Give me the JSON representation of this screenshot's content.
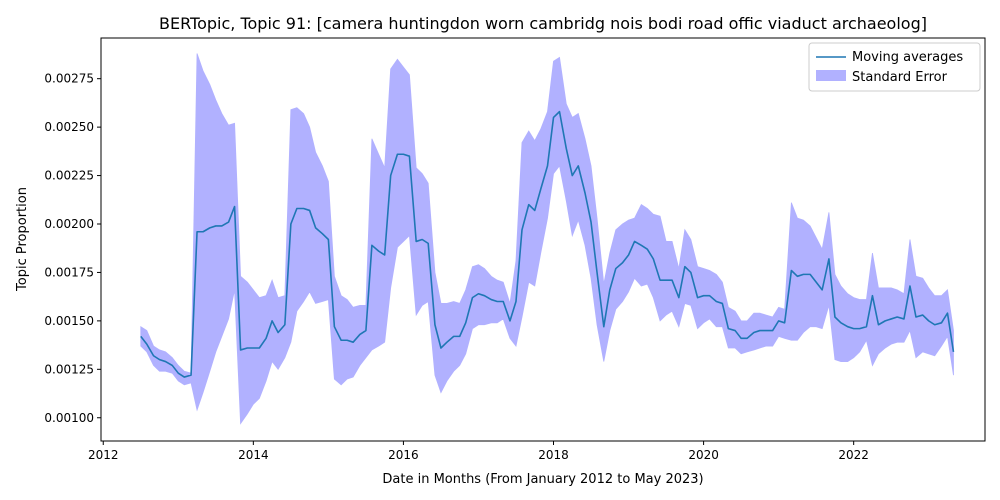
{
  "chart_data": {
    "type": "line",
    "title": "BERTopic, Topic 91: [camera huntingdon worn cambridg nois bodi road offic viaduct archaeolog]",
    "xlabel": "Date in Months (From January 2012 to May 2023)",
    "ylabel": "Topic Proportion",
    "xlim": [
      2011.97,
      2023.75
    ],
    "ylim": [
      0.00088,
      0.00296
    ],
    "xticks": [
      2012,
      2014,
      2016,
      2018,
      2020,
      2022
    ],
    "yticks": [
      0.001,
      0.00125,
      0.0015,
      0.00175,
      0.002,
      0.00225,
      0.0025,
      0.00275
    ],
    "ytick_labels": [
      "0.00100",
      "0.00125",
      "0.00150",
      "0.00175",
      "0.00200",
      "0.00225",
      "0.00250",
      "0.00275"
    ],
    "grid": false,
    "legend_position": "top-right",
    "series": [
      {
        "name": "Moving averages",
        "color": "#1f77b4",
        "x": [
          2012.5,
          2012.58,
          2012.67,
          2012.75,
          2012.83,
          2012.92,
          2013.0,
          2013.08,
          2013.17,
          2013.25,
          2013.33,
          2013.42,
          2013.5,
          2013.58,
          2013.67,
          2013.75,
          2013.83,
          2013.92,
          2014.0,
          2014.08,
          2014.17,
          2014.25,
          2014.33,
          2014.42,
          2014.5,
          2014.58,
          2014.67,
          2014.75,
          2014.83,
          2014.92,
          2015.0,
          2015.08,
          2015.17,
          2015.25,
          2015.33,
          2015.42,
          2015.5,
          2015.58,
          2015.67,
          2015.75,
          2015.83,
          2015.92,
          2016.0,
          2016.08,
          2016.17,
          2016.25,
          2016.33,
          2016.42,
          2016.5,
          2016.58,
          2016.67,
          2016.75,
          2016.83,
          2016.92,
          2017.0,
          2017.08,
          2017.17,
          2017.25,
          2017.33,
          2017.42,
          2017.5,
          2017.58,
          2017.67,
          2017.75,
          2017.83,
          2017.92,
          2018.0,
          2018.08,
          2018.17,
          2018.25,
          2018.33,
          2018.42,
          2018.5,
          2018.58,
          2018.67,
          2018.75,
          2018.83,
          2018.92,
          2019.0,
          2019.08,
          2019.17,
          2019.25,
          2019.33,
          2019.42,
          2019.5,
          2019.58,
          2019.67,
          2019.75,
          2019.83,
          2019.92,
          2020.0,
          2020.08,
          2020.17,
          2020.25,
          2020.33,
          2020.42,
          2020.5,
          2020.58,
          2020.67,
          2020.75,
          2020.83,
          2020.92,
          2021.0,
          2021.08,
          2021.17,
          2021.25,
          2021.33,
          2021.42,
          2021.5,
          2021.58,
          2021.67,
          2021.75,
          2021.83,
          2021.92,
          2022.0,
          2022.08,
          2022.17,
          2022.25,
          2022.33,
          2022.42,
          2022.5,
          2022.58,
          2022.67,
          2022.75,
          2022.83,
          2022.92,
          2023.0,
          2023.08,
          2023.17,
          2023.25,
          2023.33
        ],
        "values": [
          0.00142,
          0.00138,
          0.00132,
          0.0013,
          0.00129,
          0.00127,
          0.00123,
          0.00121,
          0.00122,
          0.00196,
          0.00196,
          0.00198,
          0.00199,
          0.00199,
          0.00201,
          0.00209,
          0.00135,
          0.00136,
          0.00136,
          0.00136,
          0.00141,
          0.0015,
          0.00144,
          0.00148,
          0.002,
          0.00208,
          0.00208,
          0.00207,
          0.00198,
          0.00195,
          0.00192,
          0.00147,
          0.0014,
          0.0014,
          0.00139,
          0.00143,
          0.00145,
          0.00189,
          0.00186,
          0.00184,
          0.00225,
          0.00236,
          0.00236,
          0.00235,
          0.00191,
          0.00192,
          0.0019,
          0.00148,
          0.00136,
          0.00139,
          0.00142,
          0.00142,
          0.00149,
          0.00162,
          0.00164,
          0.00163,
          0.00161,
          0.0016,
          0.0016,
          0.0015,
          0.0016,
          0.00197,
          0.0021,
          0.00207,
          0.00218,
          0.0023,
          0.00255,
          0.00258,
          0.00239,
          0.00225,
          0.0023,
          0.00216,
          0.00201,
          0.00175,
          0.00147,
          0.00166,
          0.00177,
          0.0018,
          0.00184,
          0.00191,
          0.00189,
          0.00187,
          0.00182,
          0.00171,
          0.00171,
          0.00171,
          0.00162,
          0.00178,
          0.00175,
          0.00162,
          0.00163,
          0.00163,
          0.0016,
          0.00159,
          0.00146,
          0.00145,
          0.00141,
          0.00141,
          0.00144,
          0.00145,
          0.00145,
          0.00145,
          0.0015,
          0.00149,
          0.00176,
          0.00173,
          0.00174,
          0.00174,
          0.0017,
          0.00166,
          0.00182,
          0.00152,
          0.00149,
          0.00147,
          0.00146,
          0.00146,
          0.00147,
          0.00163,
          0.00148,
          0.0015,
          0.00151,
          0.00152,
          0.00151,
          0.00168,
          0.00152,
          0.00153,
          0.0015,
          0.00148,
          0.00149,
          0.00154,
          0.00134
        ]
      },
      {
        "name": "Standard Error",
        "color": "#b1b1ff",
        "type": "area",
        "upper": [
          0.00147,
          0.00145,
          0.00137,
          0.00135,
          0.00134,
          0.00131,
          0.00127,
          0.00124,
          0.00123,
          0.00288,
          0.00279,
          0.00272,
          0.00264,
          0.00257,
          0.00251,
          0.00252,
          0.00173,
          0.0017,
          0.00166,
          0.00162,
          0.00163,
          0.00171,
          0.00162,
          0.00163,
          0.00259,
          0.0026,
          0.00257,
          0.0025,
          0.00237,
          0.0023,
          0.00222,
          0.00173,
          0.00163,
          0.00161,
          0.00157,
          0.00158,
          0.00158,
          0.00244,
          0.00236,
          0.00229,
          0.0028,
          0.00285,
          0.00281,
          0.00277,
          0.00229,
          0.00226,
          0.00221,
          0.00175,
          0.00159,
          0.00159,
          0.0016,
          0.00159,
          0.00166,
          0.00178,
          0.00179,
          0.00177,
          0.00173,
          0.00171,
          0.0017,
          0.00159,
          0.00181,
          0.00242,
          0.00248,
          0.00243,
          0.00249,
          0.00258,
          0.00284,
          0.00286,
          0.00262,
          0.00255,
          0.00257,
          0.00244,
          0.0023,
          0.00203,
          0.00169,
          0.00185,
          0.00197,
          0.002,
          0.00202,
          0.00203,
          0.0021,
          0.00208,
          0.00205,
          0.00204,
          0.00191,
          0.00191,
          0.00177,
          0.00197,
          0.00192,
          0.00178,
          0.00177,
          0.00176,
          0.00174,
          0.0017,
          0.00157,
          0.00155,
          0.0015,
          0.0015,
          0.00154,
          0.00154,
          0.00153,
          0.00152,
          0.00157,
          0.00156,
          0.00211,
          0.00203,
          0.00202,
          0.00199,
          0.00193,
          0.00187,
          0.00206,
          0.00174,
          0.00168,
          0.00164,
          0.00162,
          0.00161,
          0.00161,
          0.00185,
          0.00167,
          0.00167,
          0.00167,
          0.00166,
          0.00164,
          0.00192,
          0.00173,
          0.00172,
          0.00167,
          0.00163,
          0.00163,
          0.00166,
          0.00145
        ],
        "lower": [
          0.00137,
          0.00134,
          0.00127,
          0.00124,
          0.00124,
          0.00123,
          0.00119,
          0.00117,
          0.00118,
          0.00104,
          0.00113,
          0.00124,
          0.00134,
          0.00142,
          0.00151,
          0.00166,
          0.00097,
          0.00102,
          0.00107,
          0.0011,
          0.00119,
          0.00129,
          0.00125,
          0.00131,
          0.00139,
          0.00155,
          0.0016,
          0.00165,
          0.00159,
          0.0016,
          0.00161,
          0.0012,
          0.00117,
          0.0012,
          0.00121,
          0.00127,
          0.00131,
          0.00135,
          0.00137,
          0.00139,
          0.00167,
          0.00188,
          0.00191,
          0.00194,
          0.00153,
          0.00158,
          0.0016,
          0.00122,
          0.00113,
          0.00119,
          0.00124,
          0.00127,
          0.00133,
          0.00146,
          0.00148,
          0.00148,
          0.00149,
          0.00149,
          0.00151,
          0.00141,
          0.00137,
          0.00152,
          0.0017,
          0.00168,
          0.00185,
          0.00203,
          0.00226,
          0.0023,
          0.00212,
          0.00194,
          0.00202,
          0.00189,
          0.00172,
          0.00148,
          0.00129,
          0.00145,
          0.00156,
          0.0016,
          0.00165,
          0.00172,
          0.00168,
          0.00169,
          0.00162,
          0.0015,
          0.00153,
          0.00155,
          0.00147,
          0.00159,
          0.00158,
          0.00146,
          0.00149,
          0.00151,
          0.00147,
          0.00147,
          0.00136,
          0.00136,
          0.00133,
          0.00134,
          0.00135,
          0.00136,
          0.00137,
          0.00137,
          0.00142,
          0.00141,
          0.0014,
          0.0014,
          0.00144,
          0.00147,
          0.00147,
          0.00146,
          0.00158,
          0.0013,
          0.00129,
          0.00129,
          0.00131,
          0.00134,
          0.0014,
          0.00127,
          0.00133,
          0.00136,
          0.00138,
          0.00139,
          0.00139,
          0.00145,
          0.00131,
          0.00134,
          0.00133,
          0.00132,
          0.00137,
          0.00142,
          0.00122
        ]
      }
    ]
  }
}
